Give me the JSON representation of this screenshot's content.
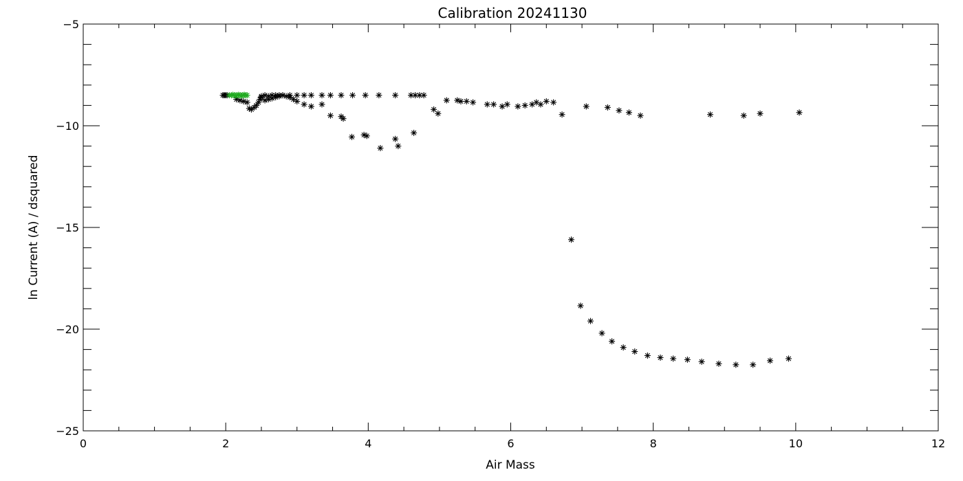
{
  "chart_data": {
    "type": "scatter",
    "title": "Calibration 20241130",
    "xlabel": "Air Mass",
    "ylabel": "ln Current (A) / dsquared",
    "xlim": [
      0,
      12
    ],
    "ylim": [
      -25,
      -5
    ],
    "x_ticks": [
      0,
      2,
      4,
      6,
      8,
      10,
      12
    ],
    "y_ticks": [
      -25,
      -20,
      -15,
      -10,
      -5
    ],
    "x_minor_step": 0.5,
    "y_minor_step": 1,
    "grid": false,
    "legend": "none",
    "marker": "asterisk",
    "series": [
      {
        "color": "#000000",
        "points": [
          [
            1.96,
            -8.5
          ],
          [
            1.98,
            -8.5
          ],
          [
            2.0,
            -8.5
          ],
          [
            2.02,
            -8.5
          ],
          [
            2.15,
            -8.7
          ],
          [
            2.2,
            -8.75
          ],
          [
            2.25,
            -8.8
          ],
          [
            2.3,
            -8.85
          ],
          [
            2.33,
            -9.15
          ],
          [
            2.36,
            -9.2
          ],
          [
            2.4,
            -9.1
          ],
          [
            2.43,
            -9.0
          ],
          [
            2.46,
            -8.85
          ],
          [
            2.48,
            -8.7
          ],
          [
            2.5,
            -8.6
          ],
          [
            2.55,
            -8.75
          ],
          [
            2.6,
            -8.7
          ],
          [
            2.65,
            -8.65
          ],
          [
            2.7,
            -8.6
          ],
          [
            2.75,
            -8.55
          ],
          [
            2.8,
            -8.5
          ],
          [
            2.85,
            -8.55
          ],
          [
            2.9,
            -8.6
          ],
          [
            2.95,
            -8.7
          ],
          [
            3.0,
            -8.8
          ],
          [
            3.1,
            -8.95
          ],
          [
            3.2,
            -9.05
          ],
          [
            3.35,
            -8.95
          ],
          [
            2.5,
            -8.55
          ],
          [
            2.55,
            -8.5
          ],
          [
            2.6,
            -8.55
          ],
          [
            2.65,
            -8.5
          ],
          [
            2.7,
            -8.5
          ],
          [
            2.75,
            -8.5
          ],
          [
            2.8,
            -8.5
          ],
          [
            2.9,
            -8.5
          ],
          [
            3.0,
            -8.5
          ],
          [
            3.1,
            -8.5
          ],
          [
            3.2,
            -8.5
          ],
          [
            3.35,
            -8.5
          ],
          [
            3.47,
            -8.5
          ],
          [
            3.62,
            -8.5
          ],
          [
            3.78,
            -8.5
          ],
          [
            3.96,
            -8.5
          ],
          [
            4.15,
            -8.5
          ],
          [
            4.38,
            -8.5
          ],
          [
            4.6,
            -8.5
          ],
          [
            4.66,
            -8.5
          ],
          [
            4.72,
            -8.5
          ],
          [
            4.78,
            -8.5
          ],
          [
            3.47,
            -9.5
          ],
          [
            3.62,
            -9.55
          ],
          [
            3.65,
            -9.65
          ],
          [
            3.77,
            -10.55
          ],
          [
            3.94,
            -10.45
          ],
          [
            3.98,
            -10.5
          ],
          [
            4.17,
            -11.1
          ],
          [
            4.38,
            -10.65
          ],
          [
            4.42,
            -11.0
          ],
          [
            4.64,
            -10.35
          ],
          [
            4.92,
            -9.2
          ],
          [
            4.98,
            -9.4
          ],
          [
            5.1,
            -8.75
          ],
          [
            5.25,
            -8.75
          ],
          [
            5.3,
            -8.8
          ],
          [
            5.38,
            -8.8
          ],
          [
            5.47,
            -8.85
          ],
          [
            5.67,
            -8.95
          ],
          [
            5.76,
            -8.95
          ],
          [
            5.88,
            -9.05
          ],
          [
            5.95,
            -8.95
          ],
          [
            6.1,
            -9.05
          ],
          [
            6.2,
            -9.0
          ],
          [
            6.3,
            -8.95
          ],
          [
            6.36,
            -8.85
          ],
          [
            6.42,
            -8.95
          ],
          [
            6.5,
            -8.8
          ],
          [
            6.6,
            -8.85
          ],
          [
            6.72,
            -9.45
          ],
          [
            7.06,
            -9.05
          ],
          [
            7.36,
            -9.1
          ],
          [
            7.52,
            -9.25
          ],
          [
            7.66,
            -9.35
          ],
          [
            7.82,
            -9.5
          ],
          [
            8.8,
            -9.45
          ],
          [
            9.27,
            -9.5
          ],
          [
            9.5,
            -9.4
          ],
          [
            10.05,
            -9.35
          ],
          [
            6.85,
            -15.6
          ],
          [
            6.98,
            -18.85
          ],
          [
            7.12,
            -19.6
          ],
          [
            7.28,
            -20.2
          ],
          [
            7.42,
            -20.6
          ],
          [
            7.58,
            -20.9
          ],
          [
            7.74,
            -21.1
          ],
          [
            7.92,
            -21.3
          ],
          [
            8.1,
            -21.4
          ],
          [
            8.28,
            -21.45
          ],
          [
            8.48,
            -21.5
          ],
          [
            8.68,
            -21.6
          ],
          [
            8.92,
            -21.7
          ],
          [
            9.16,
            -21.75
          ],
          [
            9.4,
            -21.75
          ],
          [
            9.64,
            -21.55
          ],
          [
            9.9,
            -21.45
          ]
        ]
      },
      {
        "color": "#22aa22",
        "points": [
          [
            2.05,
            -8.5
          ],
          [
            2.08,
            -8.5
          ],
          [
            2.1,
            -8.48
          ],
          [
            2.12,
            -8.5
          ],
          [
            2.14,
            -8.52
          ],
          [
            2.16,
            -8.5
          ],
          [
            2.18,
            -8.48
          ],
          [
            2.2,
            -8.5
          ],
          [
            2.22,
            -8.52
          ],
          [
            2.24,
            -8.5
          ],
          [
            2.26,
            -8.48
          ],
          [
            2.28,
            -8.5
          ],
          [
            2.3,
            -8.5
          ]
        ]
      }
    ]
  }
}
